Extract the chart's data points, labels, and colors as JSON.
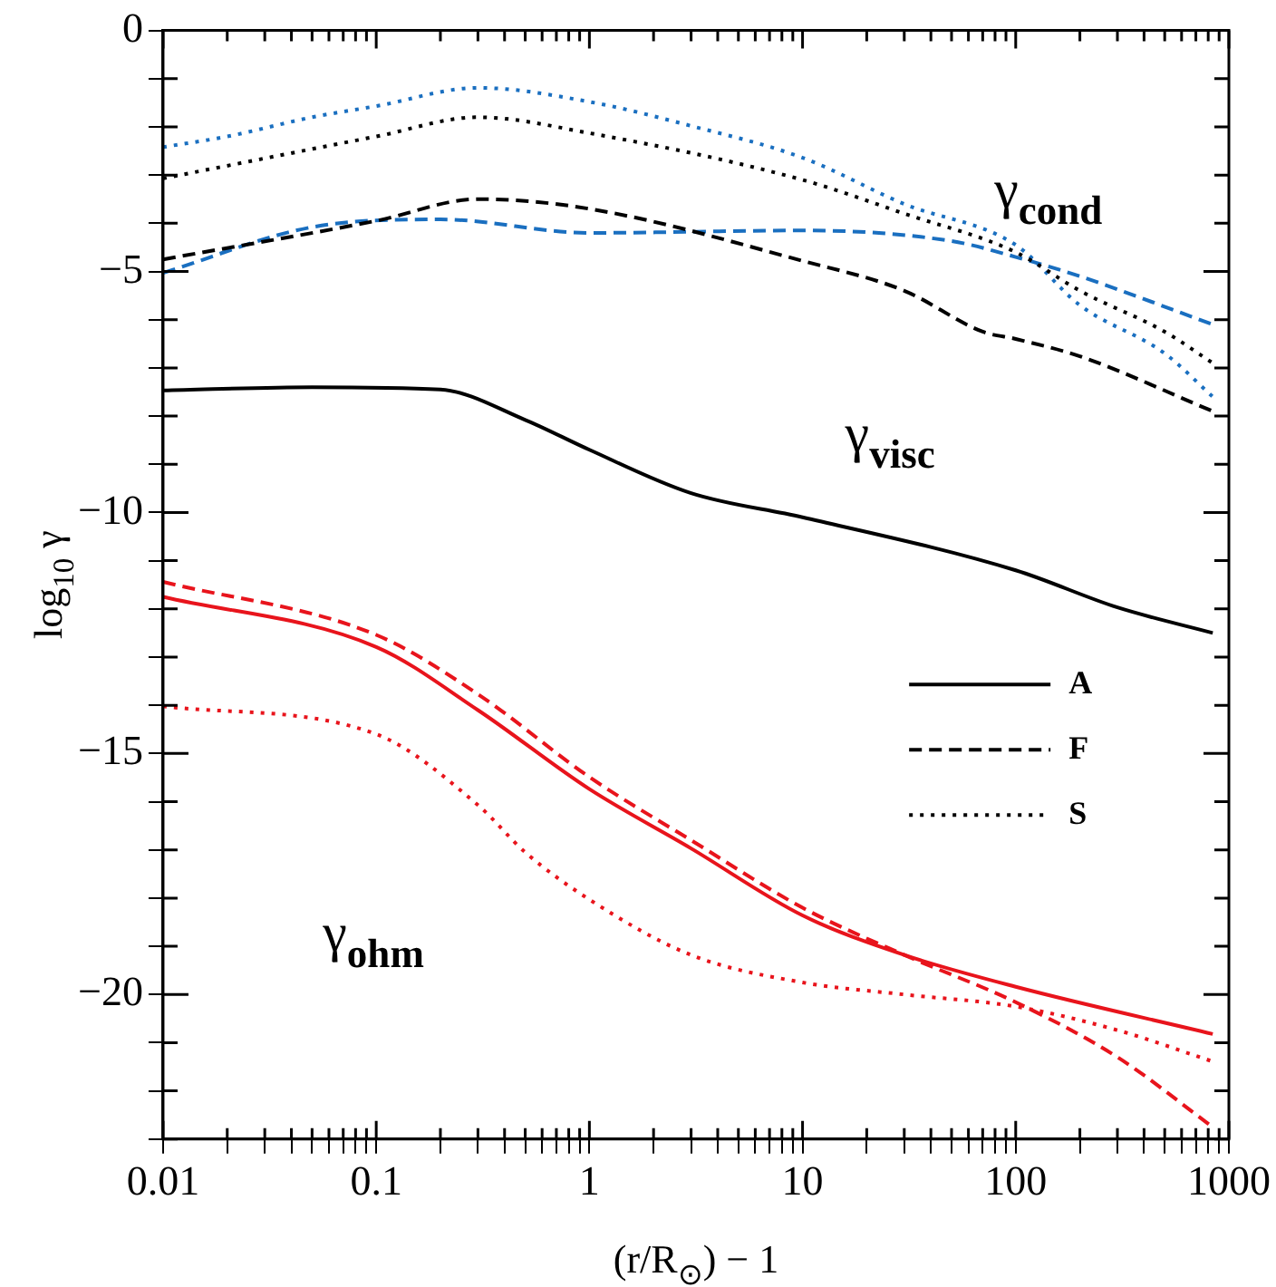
{
  "chart_data": {
    "type": "line",
    "xlabel": "(r/R$_{⊙}$) − 1",
    "ylabel": "log$_{10}$ γ",
    "log": "x",
    "grid": false,
    "legend": "right",
    "marker": "none",
    "xlim": [
      0.01,
      1000
    ],
    "ylim": [
      -23,
      0
    ],
    "xticks": [
      {
        "value": 0.01,
        "label": "0.01"
      },
      {
        "value": 0.02,
        "label": null
      },
      {
        "value": 0.03,
        "label": null
      },
      {
        "value": 0.04,
        "label": null
      },
      {
        "value": 0.05,
        "label": null
      },
      {
        "value": 0.06,
        "label": null
      },
      {
        "value": 0.07,
        "label": null
      },
      {
        "value": 0.08,
        "label": null
      },
      {
        "value": 0.09,
        "label": null
      },
      {
        "value": 0.1,
        "label": "0.1"
      },
      {
        "value": 0.2,
        "label": null
      },
      {
        "value": 0.3,
        "label": null
      },
      {
        "value": 0.4,
        "label": null
      },
      {
        "value": 0.5,
        "label": null
      },
      {
        "value": 0.6,
        "label": null
      },
      {
        "value": 0.7,
        "label": null
      },
      {
        "value": 0.8,
        "label": null
      },
      {
        "value": 0.9,
        "label": null
      },
      1,
      {
        "value": 2,
        "label": null
      },
      {
        "value": 3,
        "label": null
      },
      {
        "value": 4,
        "label": null
      },
      {
        "value": 5,
        "label": null
      },
      {
        "value": 6,
        "label": null
      },
      {
        "value": 7,
        "label": null
      },
      {
        "value": 8,
        "label": null
      },
      {
        "value": 9,
        "label": null
      },
      10,
      {
        "value": 20,
        "label": null
      },
      {
        "value": 30,
        "label": null
      },
      {
        "value": 40,
        "label": null
      },
      {
        "value": 50,
        "label": null
      },
      {
        "value": 60,
        "label": null
      },
      {
        "value": 70,
        "label": null
      },
      {
        "value": 80,
        "label": null
      },
      {
        "value": 90,
        "label": null
      },
      100,
      {
        "value": 200,
        "label": null
      },
      {
        "value": 300,
        "label": null
      },
      {
        "value": 400,
        "label": null
      },
      {
        "value": 500,
        "label": null
      },
      {
        "value": 600,
        "label": null
      },
      {
        "value": 700,
        "label": null
      },
      {
        "value": 800,
        "label": null
      },
      {
        "value": 900,
        "label": null
      },
      1000
    ],
    "yticks": [
      {
        "value": -23,
        "label": null
      },
      {
        "value": -22,
        "label": null
      },
      {
        "value": -21,
        "label": null
      },
      {
        "value": -20,
        "label": "−20"
      },
      {
        "value": -19,
        "label": null
      },
      {
        "value": -18,
        "label": null
      },
      {
        "value": -17,
        "label": null
      },
      {
        "value": -16,
        "label": null
      },
      {
        "value": -15,
        "label": "−15"
      },
      {
        "value": -14,
        "label": null
      },
      {
        "value": -13,
        "label": null
      },
      {
        "value": -12,
        "label": null
      },
      {
        "value": -11,
        "label": null
      },
      {
        "value": -10,
        "label": "−10"
      },
      {
        "value": -9,
        "label": null
      },
      {
        "value": -8,
        "label": null
      },
      {
        "value": -7,
        "label": null
      },
      {
        "value": -6,
        "label": null
      },
      {
        "value": -5,
        "label": "−5"
      },
      {
        "value": -4,
        "label": null
      },
      {
        "value": -3,
        "label": null
      },
      {
        "value": -2,
        "label": null
      },
      {
        "value": -1,
        "label": null
      },
      0
    ],
    "annotations": [
      "γ$_{cond}$",
      "γ$_{visc}$",
      "γ$_{ohm}$"
    ],
    "series": [
      {
        "name": "A",
        "color": "#000000",
        "line_style": "solid",
        "x": [
          0.01,
          0.05,
          0.2,
          0.5,
          1,
          3,
          10,
          100,
          300,
          840
        ],
        "values": [
          -7.47,
          -7.4,
          -7.45,
          -8.08,
          -8.7,
          -9.6,
          -10.1,
          -11.2,
          -11.97,
          -12.5
        ]
      },
      {
        "name": "F",
        "color": "#000000",
        "line_style": "dashed",
        "x": [
          0.01,
          0.1,
          0.3,
          1,
          10,
          30,
          70,
          100,
          200,
          840
        ],
        "values": [
          -4.75,
          -3.95,
          -3.5,
          -3.7,
          -4.78,
          -5.4,
          -6.25,
          -6.4,
          -6.76,
          -7.9
        ]
      },
      {
        "name": "S",
        "color": "#000000",
        "line_style": "dotted",
        "x": [
          0.01,
          0.1,
          0.3,
          1,
          10,
          30,
          100,
          200,
          500,
          840
        ],
        "values": [
          -3.07,
          -2.2,
          -1.8,
          -2.13,
          -3.1,
          -3.8,
          -4.6,
          -5.4,
          -6.25,
          -6.9
        ]
      },
      {
        "color": "#1a6fc0",
        "line_style": "dotted",
        "x": [
          0.01,
          0.02,
          0.05,
          0.1,
          0.3,
          1,
          3,
          10,
          30,
          100,
          200,
          500,
          840
        ],
        "values": [
          -2.42,
          -2.2,
          -1.8,
          -1.57,
          -1.19,
          -1.48,
          -1.98,
          -2.64,
          -3.6,
          -4.45,
          -5.7,
          -6.7,
          -7.6
        ]
      },
      {
        "color": "#1a6fc0",
        "line_style": "dashed",
        "x": [
          0.01,
          0.05,
          0.2,
          1,
          10,
          50,
          100,
          200,
          840
        ],
        "values": [
          -5.03,
          -4.08,
          -3.92,
          -4.2,
          -4.15,
          -4.37,
          -4.7,
          -5.1,
          -6.1
        ]
      },
      {
        "color": "#e8141c",
        "line_style": "solid",
        "x": [
          0.01,
          0.1,
          0.3,
          1,
          3,
          10,
          30,
          100,
          840
        ],
        "values": [
          -11.75,
          -12.79,
          -14.1,
          -15.74,
          -16.97,
          -18.36,
          -19.18,
          -19.84,
          -20.82
        ]
      },
      {
        "color": "#e8141c",
        "line_style": "dashed",
        "x": [
          0.01,
          0.1,
          0.3,
          1,
          3,
          10,
          30,
          100,
          300,
          840
        ],
        "values": [
          -11.44,
          -12.54,
          -13.77,
          -15.49,
          -16.8,
          -18.2,
          -19.18,
          -20.16,
          -21.3,
          -22.75
        ]
      },
      {
        "color": "#e8141c",
        "line_style": "dotted",
        "x": [
          0.01,
          0.1,
          0.3,
          0.5,
          1,
          3,
          10,
          30,
          100,
          300,
          840
        ],
        "values": [
          -14.02,
          -14.6,
          -16.07,
          -17.05,
          -18.03,
          -19.18,
          -19.75,
          -20.0,
          -20.25,
          -20.74,
          -21.39
        ]
      }
    ]
  }
}
